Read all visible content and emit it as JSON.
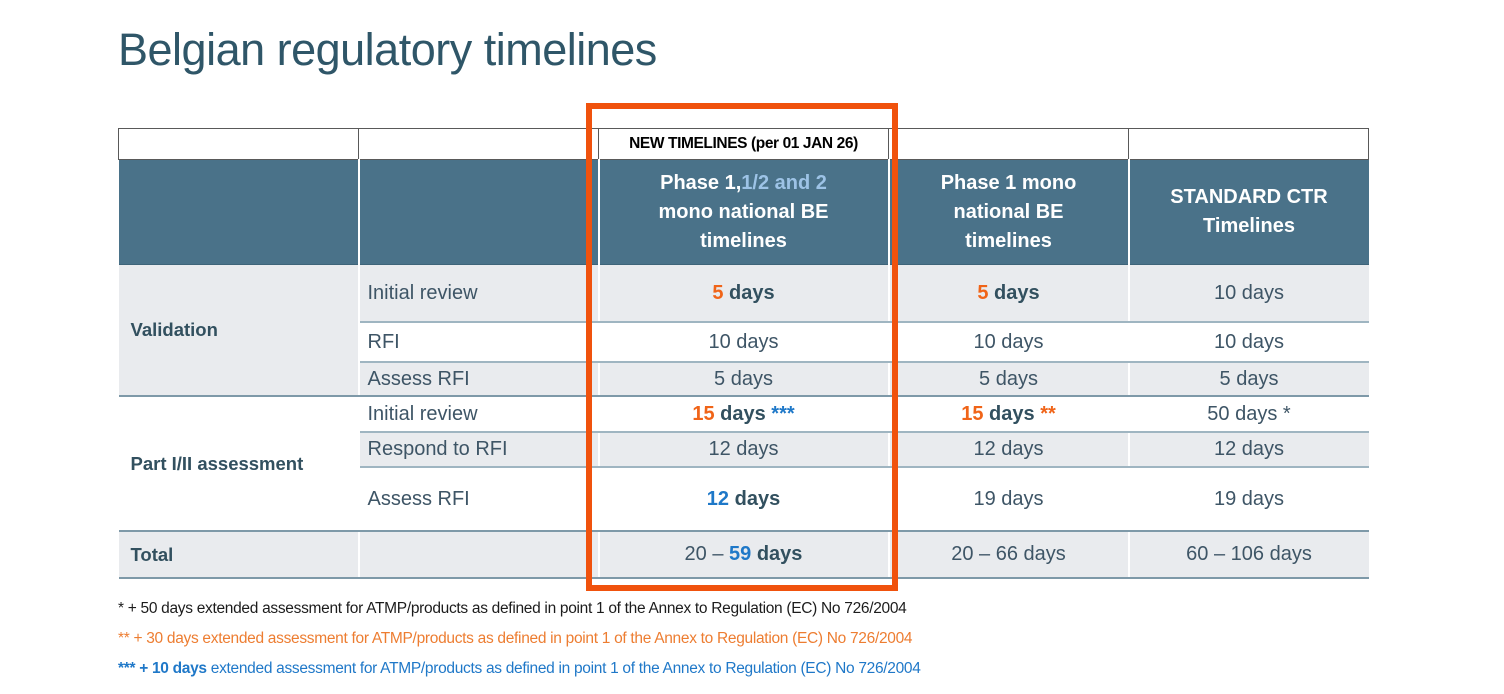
{
  "title": "Belgian regulatory timelines",
  "colors": {
    "title_text": "#2F5668",
    "header_bg": "#4A7289",
    "header_lightblue": "#9DC3E6",
    "band_gray": "#E9EBEE",
    "text_dark": "#3E5566",
    "bold_dark": "#32505F",
    "accent_orange": "#F06418",
    "accent_blue": "#1E78C8",
    "footnote_orange": "#ED7D31",
    "footnote_blue": "#1F78C8",
    "highlight_box": "#F0520D"
  },
  "table": {
    "new_timelines_banner": "NEW TIMELINES (per 01 JAN 26)",
    "header": {
      "col3": [
        [
          "Phase 1,",
          "wb"
        ],
        [
          "1/2 and 2",
          "lbb"
        ],
        [
          "\nmono national BE\ntimelines",
          "wb"
        ]
      ],
      "col4": [
        [
          "Phase 1 mono\nnational BE\ntimelines",
          "wb"
        ]
      ],
      "col5": [
        [
          "STANDARD CTR\nTimelines",
          "wb"
        ]
      ]
    },
    "groups": [
      {
        "label": "Validation",
        "rows": [
          {
            "step": "Initial review",
            "cells": [
              [
                [
                  "5",
                  "ob"
                ],
                [
                  " days",
                  "db"
                ]
              ],
              [
                [
                  "5",
                  "ob"
                ],
                [
                  " days",
                  "db"
                ]
              ],
              [
                [
                  "10 days",
                  "r"
                ]
              ]
            ]
          },
          {
            "step": "RFI",
            "cells": [
              [
                [
                  "10 days",
                  "r"
                ]
              ],
              [
                [
                  "10 days",
                  "r"
                ]
              ],
              [
                [
                  "10 days",
                  "r"
                ]
              ]
            ]
          },
          {
            "step": "Assess RFI",
            "cells": [
              [
                [
                  "5 days",
                  "r"
                ]
              ],
              [
                [
                  "5 days",
                  "r"
                ]
              ],
              [
                [
                  "5 days",
                  "r"
                ]
              ]
            ]
          }
        ]
      },
      {
        "label": "Part I/II assessment",
        "rows": [
          {
            "step": "Initial review",
            "cells": [
              [
                [
                  "15",
                  "ob"
                ],
                [
                  " days ",
                  "db"
                ],
                [
                  "***",
                  "bb"
                ]
              ],
              [
                [
                  "15",
                  "ob"
                ],
                [
                  " days ",
                  "db"
                ],
                [
                  "**",
                  "ob"
                ]
              ],
              [
                [
                  "50 days *",
                  "r"
                ]
              ]
            ]
          },
          {
            "step": "Respond to RFI",
            "cells": [
              [
                [
                  "12 days",
                  "r"
                ]
              ],
              [
                [
                  "12 days",
                  "r"
                ]
              ],
              [
                [
                  "12 days",
                  "r"
                ]
              ]
            ]
          },
          {
            "step": "Assess RFI",
            "cells": [
              [
                [
                  "12",
                  "bb"
                ],
                [
                  " days",
                  "db"
                ]
              ],
              [
                [
                  "19 days",
                  "r"
                ]
              ],
              [
                [
                  "19 days",
                  "r"
                ]
              ]
            ]
          }
        ]
      }
    ],
    "total": {
      "label": "Total",
      "cells": [
        [
          [
            "20 – ",
            "r"
          ],
          [
            "59",
            "bb"
          ],
          [
            " days",
            "db"
          ]
        ],
        [
          [
            "20 – 66 days",
            "r"
          ]
        ],
        [
          [
            "60 – 106 days",
            "r"
          ]
        ]
      ]
    }
  },
  "footnotes": [
    [
      [
        "* + 50 days extended assessment for ATMP/products as defined in point 1 of the Annex to Regulation (EC) No 726/2004",
        "black"
      ]
    ],
    [
      [
        "** + 30 days extended assessment for ATMP/products as defined in point 1 of the Annex to Regulation (EC) No 726/2004",
        "orange"
      ]
    ],
    [
      [
        "*** + 10 days",
        "blue-b"
      ],
      [
        " extended assessment for ATMP/products as defined in point 1 of the Annex to Regulation (EC) No 726/2004",
        "blue"
      ]
    ]
  ]
}
